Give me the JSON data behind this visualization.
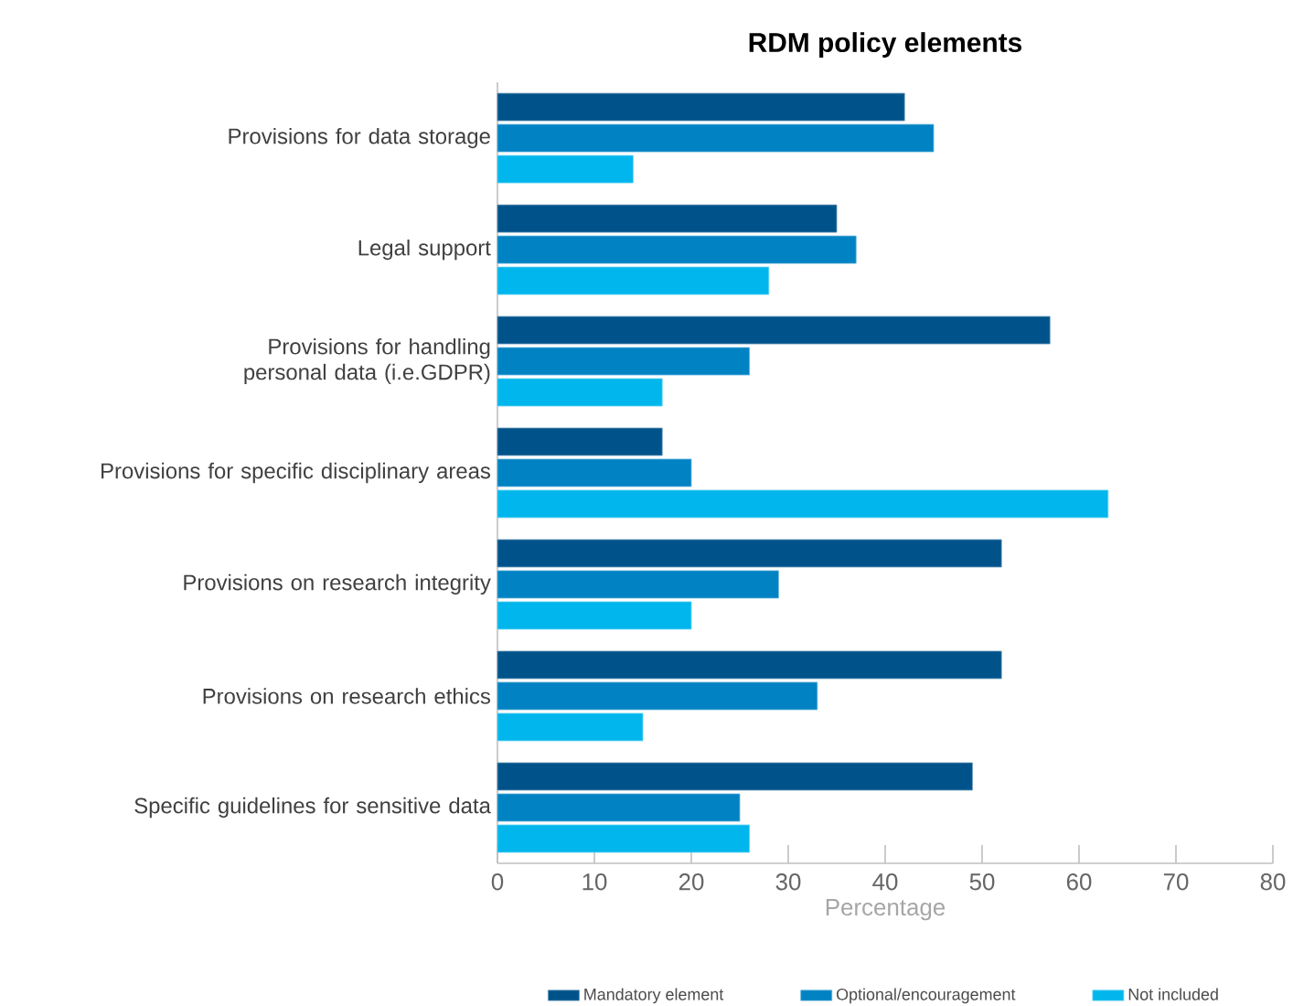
{
  "chart_data": {
    "type": "bar",
    "orientation": "horizontal",
    "title": "RDM policy elements",
    "xlabel": "Percentage",
    "categories": [
      "Provisions for data storage",
      "Legal support",
      "Provisions for handling personal data (i.e.GDPR)",
      "Provisions for specific disciplinary areas",
      "Provisions on research integrity",
      "Provisions on research ethics",
      "Specific guidelines for sensitive data"
    ],
    "series": [
      {
        "name": "Mandatory element",
        "color": "#00538a",
        "values": [
          42,
          35,
          57,
          17,
          52,
          52,
          49
        ]
      },
      {
        "name": "Optional/encouragement",
        "color": "#0082c3",
        "values": [
          45,
          37,
          26,
          20,
          29,
          33,
          25
        ]
      },
      {
        "name": "Not included",
        "color": "#00b6ec",
        "values": [
          14,
          28,
          17,
          63,
          20,
          15,
          26
        ]
      }
    ],
    "xlim": [
      0,
      80
    ],
    "xticks": [
      0,
      10,
      20,
      30,
      40,
      50,
      60,
      70,
      80
    ],
    "grid": false,
    "legend": "bottom"
  }
}
